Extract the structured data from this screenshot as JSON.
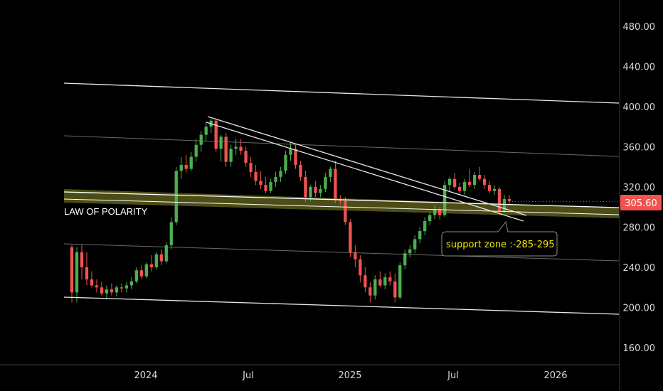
{
  "chart_data": {
    "type": "candlestick",
    "title": "",
    "xlabel": "",
    "ylabel": "",
    "y_ticks": [
      "480.00",
      "440.00",
      "400.00",
      "360.00",
      "320.00",
      "280.00",
      "240.00",
      "200.00",
      "160.00"
    ],
    "x_ticks": [
      "2024",
      "Jul",
      "2025",
      "Jul",
      "2026"
    ],
    "last_price": "305.60",
    "colors": {
      "up": "#4caf50",
      "down": "#f05350",
      "zone": "#59591a",
      "line": "#e8e8e8",
      "note_text": "#f2e600"
    },
    "annotations": {
      "polarity_label": "LAW OF POLARITY",
      "support_note": "support zone :-285-295"
    },
    "support_zone": [
      285,
      295
    ],
    "candles": [
      {
        "o": 260,
        "h": 262,
        "l": 205,
        "c": 215
      },
      {
        "o": 215,
        "h": 260,
        "l": 205,
        "c": 255
      },
      {
        "o": 255,
        "h": 262,
        "l": 228,
        "c": 240
      },
      {
        "o": 240,
        "h": 255,
        "l": 222,
        "c": 228
      },
      {
        "o": 228,
        "h": 236,
        "l": 220,
        "c": 222
      },
      {
        "o": 222,
        "h": 228,
        "l": 215,
        "c": 220
      },
      {
        "o": 220,
        "h": 226,
        "l": 212,
        "c": 214
      },
      {
        "o": 214,
        "h": 222,
        "l": 208,
        "c": 218
      },
      {
        "o": 218,
        "h": 224,
        "l": 212,
        "c": 215
      },
      {
        "o": 215,
        "h": 222,
        "l": 211,
        "c": 220
      },
      {
        "o": 220,
        "h": 224,
        "l": 215,
        "c": 219
      },
      {
        "o": 219,
        "h": 225,
        "l": 215,
        "c": 222
      },
      {
        "o": 222,
        "h": 230,
        "l": 218,
        "c": 226
      },
      {
        "o": 226,
        "h": 240,
        "l": 224,
        "c": 237
      },
      {
        "o": 237,
        "h": 242,
        "l": 228,
        "c": 231
      },
      {
        "o": 231,
        "h": 245,
        "l": 229,
        "c": 243
      },
      {
        "o": 243,
        "h": 252,
        "l": 236,
        "c": 240
      },
      {
        "o": 240,
        "h": 255,
        "l": 238,
        "c": 253
      },
      {
        "o": 253,
        "h": 258,
        "l": 242,
        "c": 246
      },
      {
        "o": 246,
        "h": 265,
        "l": 244,
        "c": 262
      },
      {
        "o": 262,
        "h": 290,
        "l": 258,
        "c": 285
      },
      {
        "o": 285,
        "h": 340,
        "l": 282,
        "c": 336
      },
      {
        "o": 336,
        "h": 350,
        "l": 328,
        "c": 342
      },
      {
        "o": 342,
        "h": 352,
        "l": 334,
        "c": 338
      },
      {
        "o": 338,
        "h": 355,
        "l": 336,
        "c": 350
      },
      {
        "o": 350,
        "h": 368,
        "l": 345,
        "c": 362
      },
      {
        "o": 362,
        "h": 376,
        "l": 355,
        "c": 372
      },
      {
        "o": 372,
        "h": 385,
        "l": 366,
        "c": 380
      },
      {
        "o": 380,
        "h": 388,
        "l": 374,
        "c": 386
      },
      {
        "o": 386,
        "h": 388,
        "l": 355,
        "c": 358
      },
      {
        "o": 358,
        "h": 372,
        "l": 345,
        "c": 370
      },
      {
        "o": 370,
        "h": 374,
        "l": 340,
        "c": 345
      },
      {
        "o": 345,
        "h": 362,
        "l": 340,
        "c": 358
      },
      {
        "o": 358,
        "h": 368,
        "l": 352,
        "c": 360
      },
      {
        "o": 360,
        "h": 368,
        "l": 352,
        "c": 356
      },
      {
        "o": 356,
        "h": 360,
        "l": 340,
        "c": 344
      },
      {
        "o": 344,
        "h": 350,
        "l": 330,
        "c": 335
      },
      {
        "o": 335,
        "h": 342,
        "l": 322,
        "c": 326
      },
      {
        "o": 326,
        "h": 336,
        "l": 318,
        "c": 322
      },
      {
        "o": 322,
        "h": 330,
        "l": 314,
        "c": 316
      },
      {
        "o": 316,
        "h": 328,
        "l": 314,
        "c": 325
      },
      {
        "o": 325,
        "h": 335,
        "l": 320,
        "c": 330
      },
      {
        "o": 330,
        "h": 340,
        "l": 325,
        "c": 336
      },
      {
        "o": 336,
        "h": 356,
        "l": 333,
        "c": 352
      },
      {
        "o": 352,
        "h": 364,
        "l": 346,
        "c": 358
      },
      {
        "o": 358,
        "h": 362,
        "l": 338,
        "c": 342
      },
      {
        "o": 342,
        "h": 346,
        "l": 326,
        "c": 330
      },
      {
        "o": 330,
        "h": 336,
        "l": 305,
        "c": 310
      },
      {
        "o": 310,
        "h": 322,
        "l": 306,
        "c": 320
      },
      {
        "o": 320,
        "h": 326,
        "l": 310,
        "c": 314
      },
      {
        "o": 314,
        "h": 322,
        "l": 310,
        "c": 318
      },
      {
        "o": 318,
        "h": 334,
        "l": 315,
        "c": 330
      },
      {
        "o": 330,
        "h": 340,
        "l": 325,
        "c": 338
      },
      {
        "o": 338,
        "h": 346,
        "l": 304,
        "c": 308
      },
      {
        "o": 308,
        "h": 312,
        "l": 302,
        "c": 306
      },
      {
        "o": 306,
        "h": 310,
        "l": 282,
        "c": 285
      },
      {
        "o": 285,
        "h": 288,
        "l": 250,
        "c": 255
      },
      {
        "o": 255,
        "h": 262,
        "l": 240,
        "c": 248
      },
      {
        "o": 248,
        "h": 252,
        "l": 225,
        "c": 232
      },
      {
        "o": 232,
        "h": 240,
        "l": 215,
        "c": 220
      },
      {
        "o": 220,
        "h": 225,
        "l": 205,
        "c": 212
      },
      {
        "o": 212,
        "h": 232,
        "l": 208,
        "c": 228
      },
      {
        "o": 228,
        "h": 236,
        "l": 220,
        "c": 222
      },
      {
        "o": 222,
        "h": 234,
        "l": 218,
        "c": 230
      },
      {
        "o": 230,
        "h": 236,
        "l": 222,
        "c": 226
      },
      {
        "o": 226,
        "h": 234,
        "l": 205,
        "c": 210
      },
      {
        "o": 210,
        "h": 245,
        "l": 208,
        "c": 242
      },
      {
        "o": 242,
        "h": 258,
        "l": 238,
        "c": 254
      },
      {
        "o": 254,
        "h": 262,
        "l": 250,
        "c": 258
      },
      {
        "o": 258,
        "h": 272,
        "l": 254,
        "c": 268
      },
      {
        "o": 268,
        "h": 280,
        "l": 264,
        "c": 276
      },
      {
        "o": 276,
        "h": 290,
        "l": 272,
        "c": 286
      },
      {
        "o": 286,
        "h": 295,
        "l": 282,
        "c": 292
      },
      {
        "o": 292,
        "h": 302,
        "l": 288,
        "c": 298
      },
      {
        "o": 298,
        "h": 300,
        "l": 288,
        "c": 292
      },
      {
        "o": 292,
        "h": 326,
        "l": 290,
        "c": 322
      },
      {
        "o": 322,
        "h": 330,
        "l": 316,
        "c": 328
      },
      {
        "o": 328,
        "h": 334,
        "l": 318,
        "c": 320
      },
      {
        "o": 320,
        "h": 324,
        "l": 312,
        "c": 316
      },
      {
        "o": 316,
        "h": 328,
        "l": 312,
        "c": 325
      },
      {
        "o": 325,
        "h": 338,
        "l": 320,
        "c": 322
      },
      {
        "o": 322,
        "h": 335,
        "l": 318,
        "c": 332
      },
      {
        "o": 332,
        "h": 340,
        "l": 326,
        "c": 328
      },
      {
        "o": 328,
        "h": 332,
        "l": 318,
        "c": 322
      },
      {
        "o": 322,
        "h": 326,
        "l": 314,
        "c": 316
      },
      {
        "o": 316,
        "h": 322,
        "l": 312,
        "c": 318
      },
      {
        "o": 318,
        "h": 320,
        "l": 292,
        "c": 296
      },
      {
        "o": 296,
        "h": 312,
        "l": 294,
        "c": 308
      },
      {
        "o": 308,
        "h": 312,
        "l": 302,
        "c": 306
      }
    ]
  }
}
